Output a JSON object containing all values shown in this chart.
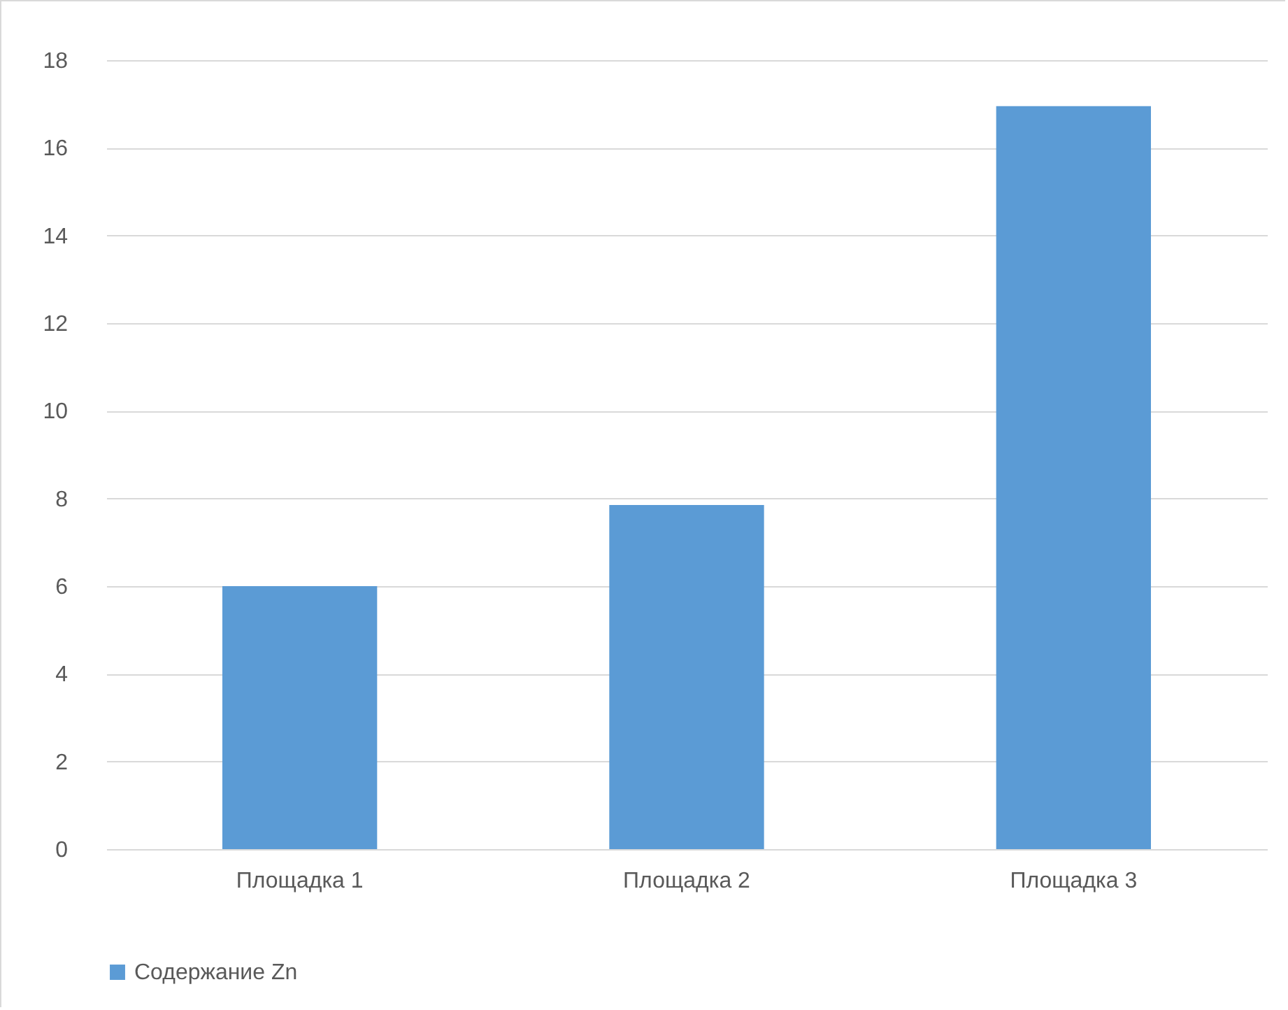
{
  "chart_data": {
    "type": "bar",
    "categories": [
      "Площадка 1",
      "Площадка 2",
      "Площадка 3"
    ],
    "series": [
      {
        "name": "Содержание Zn",
        "color": "#5b9bd5",
        "values": [
          6.0,
          7.85,
          16.95
        ]
      }
    ],
    "ylim": [
      0,
      18
    ],
    "yticks": [
      0,
      2,
      4,
      6,
      8,
      10,
      12,
      14,
      16,
      18
    ],
    "grid": "y",
    "legend": "bottom"
  }
}
